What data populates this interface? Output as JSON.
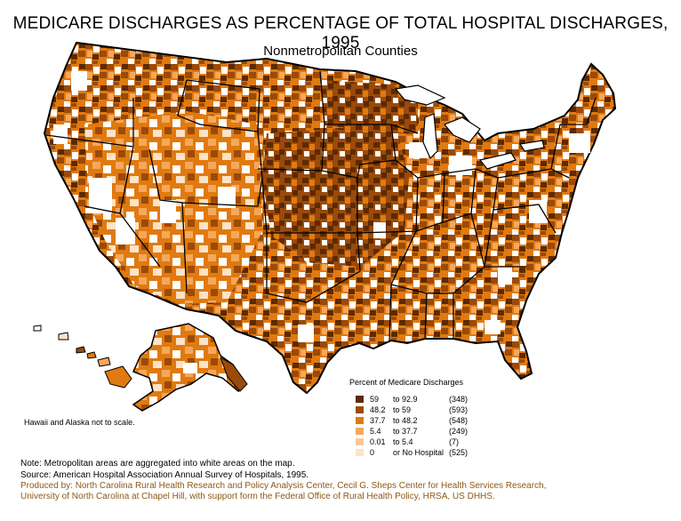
{
  "title": "MEDICARE DISCHARGES AS PERCENTAGE OF TOTAL HOSPITAL DISCHARGES, 1995",
  "subtitle": "Nonmetropolitan Counties",
  "legend": {
    "title": "Percent of Medicare Discharges",
    "rows": [
      {
        "low": "59",
        "high": "to 92.9",
        "count": "(348)",
        "color": "#5c2a00"
      },
      {
        "low": "48.2",
        "high": "to 59",
        "count": "(593)",
        "color": "#9a4a0a"
      },
      {
        "low": "37.7",
        "high": "to 48.2",
        "count": "(548)",
        "color": "#e07a10"
      },
      {
        "low": "5.4",
        "high": "to 37.7",
        "count": "(249)",
        "color": "#f5a85c"
      },
      {
        "low": "0.01",
        "high": "to  5.4",
        "count": "(7)",
        "color": "#f8c898"
      },
      {
        "low": "0",
        "high": "or No Hospital",
        "count": "(525)",
        "color": "#fde3c8"
      }
    ]
  },
  "scale_note": "Hawaii and Alaska not to scale.",
  "notes": {
    "metro": "Note: Metropolitan areas are aggregated into white areas on the map.",
    "source": "Source: American Hospital Association Annual Survey of Hospitals, 1995.",
    "credit1": "Produced by: North Carolina Rural Health Research and Policy Analysis Center, Cecil G. Sheps Center for Health Services Research,",
    "credit2": "University of North Carolina at Chapel Hill, with support form the Federal Office of Rural Health Policy, HRSA, US DHHS."
  },
  "colors": {
    "metro_white": "#ffffff",
    "border": "#000000",
    "credit_text": "#8b5a14"
  }
}
